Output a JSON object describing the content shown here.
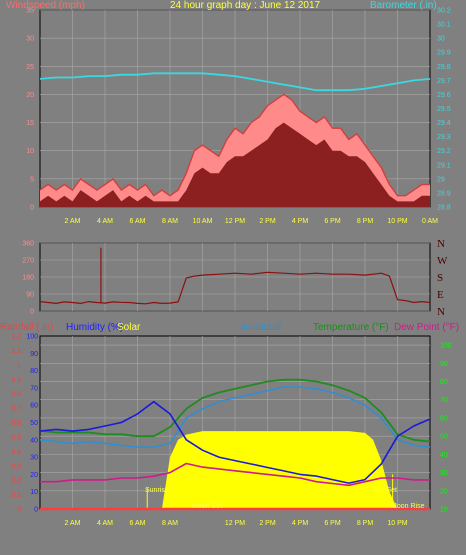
{
  "title": "24 hour graph day : June 12 2017",
  "colors": {
    "background": "#808080",
    "grid": "#a8a8a8",
    "frame": "#000000",
    "windspeed": "#ff8a8a",
    "gust": "#8c2020",
    "barometer": "#3ad8e0",
    "direction": "#8c1010",
    "rainfall": "#ff3c3c",
    "humidity": "#1a1ad8",
    "solar": "#ffff00",
    "windchill": "#2f8fd0",
    "temperature": "#1e8c1e",
    "dewpoint": "#d01a8a",
    "rainfall_axis": "#ff3c3c",
    "humidity_axis": "#2020ff",
    "temp_axis": "#00ff00",
    "dir_text": "#4a0000"
  },
  "chart_data": [
    {
      "type": "line",
      "name": "wind-barometer",
      "left_axis": {
        "label": "Windspeed (mph)",
        "ticks": [
          "0",
          "5",
          "10",
          "15",
          "20",
          "25",
          "30",
          "35"
        ],
        "range": [
          0,
          35
        ]
      },
      "right_axis": {
        "label": "Barometer (.in)",
        "ticks": [
          "28.8",
          "28.9",
          "29",
          "29.1",
          "29.2",
          "29.3",
          "29.4",
          "29.5",
          "29.6",
          "29.7",
          "29.8",
          "29.9",
          "30",
          "30.1",
          "30.2"
        ],
        "range": [
          28.8,
          30.2
        ]
      },
      "x_ticks": [
        "2 AM",
        "4 AM",
        "6 AM",
        "8 AM",
        "10 AM",
        "12 PM",
        "2 PM",
        "4 PM",
        "6 PM",
        "8 PM",
        "10 PM",
        "0 AM"
      ],
      "x_range_hours": [
        0,
        24
      ],
      "series": [
        {
          "key": "windspeed",
          "x": [
            0,
            0.5,
            1,
            1.5,
            2,
            2.5,
            3,
            3.5,
            4,
            4.5,
            5,
            5.5,
            6,
            6.5,
            7,
            7.5,
            8,
            8.5,
            9,
            9.5,
            10,
            10.5,
            11,
            11.5,
            12,
            12.5,
            13,
            13.5,
            14,
            14.5,
            15,
            15.5,
            16,
            16.5,
            17,
            17.5,
            18,
            18.5,
            19,
            19.5,
            20,
            20.5,
            21,
            21.5,
            22,
            22.5,
            23,
            23.5,
            24
          ],
          "y": [
            3,
            4,
            3,
            4,
            3,
            5,
            4,
            3,
            4,
            5,
            3,
            4,
            3,
            4,
            2,
            3,
            2,
            3,
            6,
            10,
            11,
            10,
            9,
            12,
            14,
            13,
            15,
            16,
            18,
            19,
            20,
            19,
            17,
            16,
            15,
            16,
            14,
            14,
            12,
            13,
            11,
            9,
            7,
            4,
            2,
            2,
            3,
            4,
            4
          ]
        },
        {
          "key": "gust",
          "x": [
            0,
            0.5,
            1,
            1.5,
            2,
            2.5,
            3,
            3.5,
            4,
            4.5,
            5,
            5.5,
            6,
            6.5,
            7,
            7.5,
            8,
            8.5,
            9,
            9.5,
            10,
            10.5,
            11,
            11.5,
            12,
            12.5,
            13,
            13.5,
            14,
            14.5,
            15,
            15.5,
            16,
            16.5,
            17,
            17.5,
            18,
            18.5,
            19,
            19.5,
            20,
            20.5,
            21,
            21.5,
            22,
            22.5,
            23,
            23.5,
            24
          ],
          "y": [
            1,
            2,
            1,
            2,
            1,
            3,
            2,
            1,
            2,
            3,
            1,
            2,
            1,
            2,
            1,
            1,
            1,
            1,
            3,
            6,
            7,
            6,
            6,
            8,
            9,
            9,
            10,
            11,
            12,
            14,
            15,
            14,
            13,
            12,
            11,
            12,
            10,
            10,
            9,
            9,
            8,
            6,
            4,
            2,
            1,
            1,
            1,
            2,
            2
          ]
        },
        {
          "key": "barometer",
          "x": [
            0,
            1,
            2,
            3,
            4,
            5,
            6,
            7,
            8,
            9,
            10,
            11,
            12,
            13,
            14,
            15,
            16,
            17,
            18,
            19,
            20,
            21,
            22,
            23,
            24
          ],
          "y": [
            29.71,
            29.72,
            29.72,
            29.73,
            29.73,
            29.74,
            29.74,
            29.75,
            29.75,
            29.75,
            29.75,
            29.74,
            29.73,
            29.71,
            29.69,
            29.67,
            29.65,
            29.63,
            29.63,
            29.63,
            29.64,
            29.66,
            29.68,
            29.7,
            29.71
          ]
        }
      ]
    },
    {
      "type": "line",
      "name": "wind-direction",
      "left_axis": {
        "ticks": [
          "0",
          "90",
          "180",
          "270",
          "360"
        ],
        "range": [
          0,
          360
        ]
      },
      "right_axis": {
        "ticks": [
          "N",
          "W",
          "S",
          "E",
          "N"
        ]
      },
      "series": [
        {
          "key": "direction",
          "x": [
            0,
            0.5,
            1,
            1.5,
            2,
            2.5,
            3,
            3.5,
            4,
            4.5,
            5,
            5.5,
            6,
            6.5,
            7,
            7.5,
            8,
            8.5,
            9,
            9.5,
            10,
            11,
            12,
            13,
            14,
            15,
            16,
            17,
            18,
            19,
            20,
            20.5,
            21,
            21.5,
            22,
            22.5,
            23,
            23.5,
            24
          ],
          "y": [
            50,
            45,
            40,
            48,
            45,
            40,
            50,
            45,
            42,
            48,
            46,
            45,
            40,
            38,
            45,
            40,
            42,
            48,
            175,
            185,
            190,
            195,
            200,
            195,
            205,
            200,
            195,
            200,
            195,
            195,
            190,
            195,
            200,
            185,
            60,
            55,
            45,
            50,
            45
          ]
        }
      ]
    },
    {
      "type": "line",
      "name": "temperature-humidity-solar",
      "legend": [
        "Rainfall (.in)",
        "Humidity (%)",
        "Solar",
        "Windchill",
        "Temperature (°F)",
        "Dew Point (°F)"
      ],
      "left_axis_rain": {
        "ticks": [
          "0",
          "0.1",
          "0.2",
          "0.3",
          "0.4",
          "0.5",
          "0.6",
          "0.7",
          "0.8",
          "0.9",
          "1",
          "1.1",
          "1.2"
        ],
        "range": [
          0,
          1.2
        ]
      },
      "left_axis_humidity": {
        "ticks": [
          "0",
          "10",
          "20",
          "30",
          "40",
          "50",
          "60",
          "70",
          "80",
          "90",
          "100"
        ],
        "range": [
          0,
          100
        ]
      },
      "right_axis": {
        "ticks": [
          "10",
          "20",
          "30",
          "40",
          "50",
          "60",
          "70",
          "80",
          "90",
          "100"
        ],
        "range": [
          10,
          105
        ]
      },
      "annotations": {
        "sunrise": "Sunrise",
        "sunset": "SunSet",
        "moonset": "Moon Set",
        "moonrise": "Moon Rise"
      },
      "series": [
        {
          "key": "temperature",
          "x": [
            0,
            1,
            2,
            3,
            4,
            5,
            6,
            7,
            8,
            9,
            10,
            11,
            12,
            13,
            14,
            15,
            16,
            17,
            18,
            19,
            20,
            21,
            22,
            23,
            24
          ],
          "y": [
            53,
            52,
            52,
            52,
            51,
            51,
            50,
            50,
            55,
            65,
            71,
            74,
            76,
            78,
            80,
            81,
            81,
            80,
            78,
            75,
            71,
            63,
            51,
            48,
            47
          ]
        },
        {
          "key": "windchill",
          "x": [
            0,
            1,
            2,
            3,
            4,
            5,
            6,
            7,
            8,
            9,
            10,
            11,
            12,
            13,
            14,
            15,
            16,
            17,
            18,
            19,
            20,
            21,
            22,
            23,
            24
          ],
          "y": [
            48,
            47,
            46,
            47,
            46,
            45,
            44,
            44,
            46,
            60,
            65,
            69,
            71,
            73,
            75,
            77,
            77,
            76,
            74,
            71,
            67,
            60,
            48,
            45,
            44
          ]
        },
        {
          "key": "dewpoint",
          "x": [
            0,
            1,
            2,
            3,
            4,
            5,
            6,
            7,
            8,
            9,
            10,
            11,
            12,
            13,
            14,
            15,
            16,
            17,
            18,
            19,
            20,
            21,
            22,
            23,
            24
          ],
          "y": [
            25,
            25,
            26,
            26,
            26,
            27,
            27,
            28,
            30,
            35,
            33,
            32,
            31,
            30,
            29,
            28,
            27,
            25,
            24,
            23,
            25,
            27,
            27,
            26,
            26
          ]
        },
        {
          "key": "humidity",
          "x": [
            0,
            1,
            2,
            3,
            4,
            5,
            6,
            7,
            8,
            9,
            10,
            11,
            12,
            13,
            14,
            15,
            16,
            17,
            18,
            19,
            20,
            21,
            22,
            23,
            24
          ],
          "y": [
            45,
            46,
            45,
            46,
            48,
            50,
            55,
            62,
            55,
            40,
            34,
            30,
            28,
            26,
            24,
            22,
            20,
            19,
            17,
            15,
            17,
            26,
            42,
            48,
            52
          ]
        },
        {
          "key": "solar",
          "x": [
            0,
            6.5,
            7.5,
            8,
            8.5,
            9,
            10,
            12,
            14,
            16,
            18,
            19,
            20,
            20.5,
            21,
            21.5,
            22,
            24
          ],
          "y": [
            0,
            0,
            0,
            30,
            40,
            43,
            45,
            45,
            45,
            45,
            45,
            45,
            44,
            40,
            28,
            10,
            0,
            0
          ]
        },
        {
          "key": "rainfall",
          "x": [
            0,
            24
          ],
          "y": [
            0,
            0
          ]
        }
      ]
    }
  ]
}
